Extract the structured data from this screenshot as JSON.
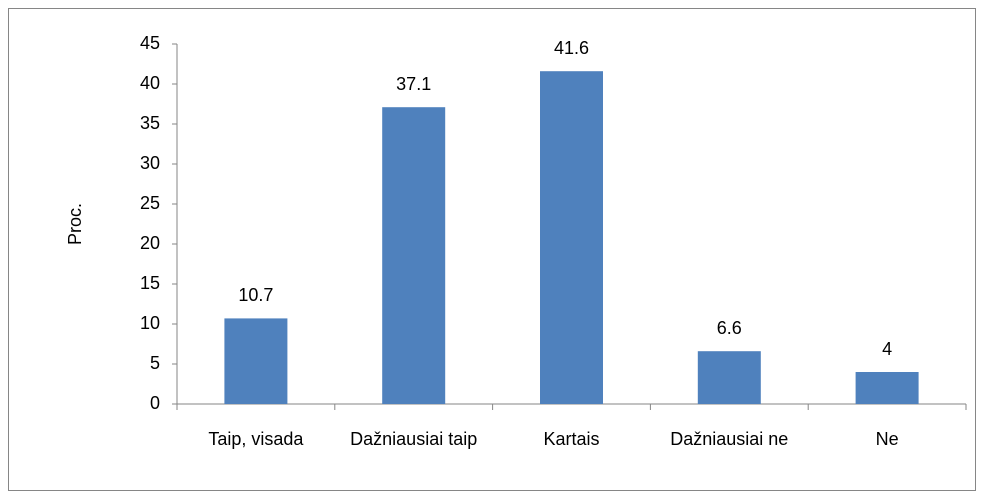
{
  "chart_data": {
    "type": "bar",
    "y_label": "Proc.",
    "categories": [
      "Taip, visada",
      "Dažniausiai taip",
      "Kartais",
      "Dažniausiai ne",
      "Ne"
    ],
    "values": [
      10.7,
      37.1,
      41.6,
      6.6,
      4
    ],
    "color": "#4f81bd",
    "ylim": [
      0,
      45
    ],
    "yticks": [
      0,
      5,
      10,
      15,
      20,
      25,
      30,
      35,
      40,
      45
    ],
    "grid": false
  }
}
